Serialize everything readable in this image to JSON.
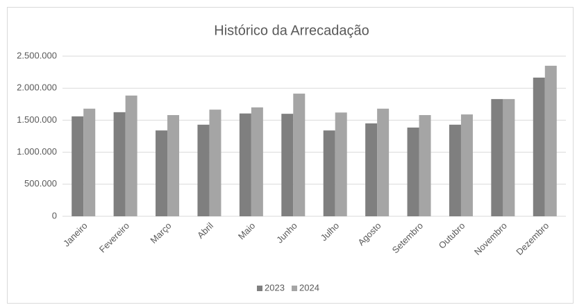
{
  "chart_data": {
    "type": "bar",
    "title": "Histórico da Arrecadação",
    "categories": [
      "Janeiro",
      "Fevereiro",
      "Março",
      "Abril",
      "Maio",
      "Junho",
      "Julho",
      "Agosto",
      "Setembro",
      "Outubro",
      "Novembro",
      "Dezembro"
    ],
    "series": [
      {
        "name": "2023",
        "color": "#7f7f7f",
        "values": [
          1560000,
          1625000,
          1340000,
          1430000,
          1605000,
          1600000,
          1340000,
          1450000,
          1385000,
          1430000,
          1830000,
          2165000
        ]
      },
      {
        "name": "2024",
        "color": "#a5a5a5",
        "values": [
          1680000,
          1885000,
          1580000,
          1665000,
          1700000,
          1915000,
          1620000,
          1680000,
          1580000,
          1590000,
          1830000,
          2350000
        ]
      }
    ],
    "ylim": [
      0,
      2500000
    ],
    "yticks": [
      0,
      {
        "value": 500000,
        "label": "500.000"
      },
      {
        "value": 1000000,
        "label": "1.000.000"
      },
      {
        "value": 1500000,
        "label": "1.500.000"
      },
      {
        "value": 2000000,
        "label": "2.000.000"
      },
      {
        "value": 2500000,
        "label": "2.500.000"
      }
    ],
    "grid": true,
    "legend": "bottom"
  }
}
